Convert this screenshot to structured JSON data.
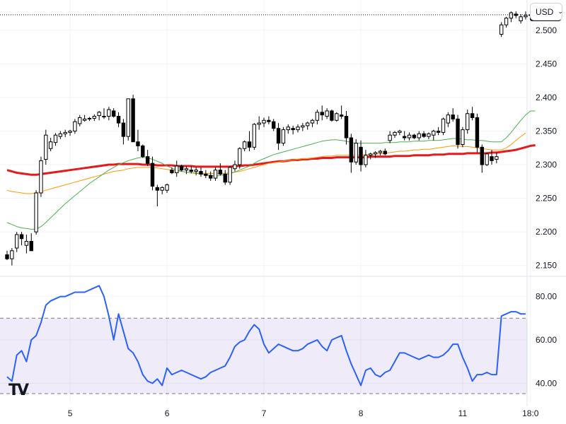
{
  "currency_selector": {
    "label": "USD",
    "chevron_icon": "chevron-down-icon"
  },
  "logo": {
    "icon": "tradingview-logo",
    "text": "TV"
  },
  "colors": {
    "up_candle_fill": "#ffffff",
    "down_candle_fill": "#000000",
    "candle_outline": "#000000",
    "ma_long": "#e41a1c",
    "ma_mid": "#ff9800",
    "ma_short": "#4caf50",
    "rsi_line": "#2962ff",
    "rsi_band": "#7e57c2",
    "price_label_bg": "#000000",
    "price_label_text": "#ffffff"
  },
  "chart_data": [
    {
      "type": "candlestick",
      "title": "",
      "price_axis": {
        "ticks": [
          "2.500",
          "2.450",
          "2.400",
          "2.350",
          "2.300",
          "2.250",
          "2.200",
          "2.150"
        ],
        "range": [
          2.135,
          2.545
        ]
      },
      "time_axis": {
        "ticks": [
          "5",
          "6",
          "7",
          "8",
          "11",
          "18:0"
        ],
        "positions_bar_index": [
          13,
          33,
          53,
          73,
          94,
          108
        ]
      },
      "last_price": {
        "label": "2.523",
        "value": 2.523
      },
      "candles_ohlc": [
        [
          2.166,
          2.172,
          2.158,
          2.16
        ],
        [
          2.16,
          2.176,
          2.15,
          2.172
        ],
        [
          2.176,
          2.2,
          2.17,
          2.196
        ],
        [
          2.196,
          2.2,
          2.18,
          2.19
        ],
        [
          2.18,
          2.196,
          2.168,
          2.186
        ],
        [
          2.186,
          2.198,
          2.172,
          2.172
        ],
        [
          2.2,
          2.262,
          2.196,
          2.258
        ],
        [
          2.258,
          2.312,
          2.252,
          2.306
        ],
        [
          2.308,
          2.352,
          2.3,
          2.344
        ],
        [
          2.324,
          2.34,
          2.32,
          2.334
        ],
        [
          2.333,
          2.347,
          2.328,
          2.344
        ],
        [
          2.342,
          2.35,
          2.338,
          2.346
        ],
        [
          2.346,
          2.352,
          2.341,
          2.348
        ],
        [
          2.348,
          2.352,
          2.343,
          2.35
        ],
        [
          2.35,
          2.368,
          2.346,
          2.364
        ],
        [
          2.361,
          2.374,
          2.357,
          2.37
        ],
        [
          2.366,
          2.374,
          2.364,
          2.368
        ],
        [
          2.368,
          2.371,
          2.365,
          2.369
        ],
        [
          2.369,
          2.375,
          2.365,
          2.372
        ],
        [
          2.373,
          2.38,
          2.366,
          2.378
        ],
        [
          2.372,
          2.384,
          2.368,
          2.372
        ],
        [
          2.372,
          2.386,
          2.366,
          2.382
        ],
        [
          2.38,
          2.384,
          2.37,
          2.372
        ],
        [
          2.372,
          2.378,
          2.356,
          2.362
        ],
        [
          2.362,
          2.368,
          2.33,
          2.342
        ],
        [
          2.342,
          2.398,
          2.336,
          2.398
        ],
        [
          2.398,
          2.404,
          2.334,
          2.334
        ],
        [
          2.334,
          2.352,
          2.32,
          2.328
        ],
        [
          2.328,
          2.33,
          2.31,
          2.312
        ],
        [
          2.312,
          2.322,
          2.298,
          2.302
        ],
        [
          2.302,
          2.312,
          2.262,
          2.268
        ],
        [
          2.266,
          2.27,
          2.238,
          2.262
        ],
        [
          2.262,
          2.268,
          2.256,
          2.266
        ],
        [
          2.262,
          2.272,
          2.258,
          2.27
        ],
        [
          2.292,
          2.296,
          2.286,
          2.288
        ],
        [
          2.288,
          2.306,
          2.282,
          2.298
        ],
        [
          2.298,
          2.3,
          2.29,
          2.292
        ],
        [
          2.292,
          2.298,
          2.286,
          2.294
        ],
        [
          2.292,
          2.298,
          2.287,
          2.29
        ],
        [
          2.29,
          2.296,
          2.284,
          2.292
        ],
        [
          2.29,
          2.296,
          2.282,
          2.286
        ],
        [
          2.286,
          2.292,
          2.28,
          2.284
        ],
        [
          2.284,
          2.29,
          2.276,
          2.28
        ],
        [
          2.28,
          2.296,
          2.276,
          2.292
        ],
        [
          2.292,
          2.302,
          2.284,
          2.286
        ],
        [
          2.286,
          2.292,
          2.27,
          2.274
        ],
        [
          2.274,
          2.298,
          2.27,
          2.296
        ],
        [
          2.294,
          2.306,
          2.29,
          2.3
        ],
        [
          2.3,
          2.326,
          2.294,
          2.324
        ],
        [
          2.324,
          2.336,
          2.32,
          2.334
        ],
        [
          2.334,
          2.35,
          2.32,
          2.326
        ],
        [
          2.326,
          2.362,
          2.322,
          2.36
        ],
        [
          2.36,
          2.372,
          2.352,
          2.362
        ],
        [
          2.362,
          2.37,
          2.356,
          2.366
        ],
        [
          2.366,
          2.372,
          2.36,
          2.364
        ],
        [
          2.364,
          2.368,
          2.35,
          2.354
        ],
        [
          2.354,
          2.362,
          2.322,
          2.332
        ],
        [
          2.332,
          2.356,
          2.328,
          2.352
        ],
        [
          2.352,
          2.36,
          2.346,
          2.356
        ],
        [
          2.354,
          2.358,
          2.345,
          2.352
        ],
        [
          2.352,
          2.36,
          2.348,
          2.356
        ],
        [
          2.356,
          2.362,
          2.35,
          2.358
        ],
        [
          2.358,
          2.364,
          2.352,
          2.362
        ],
        [
          2.362,
          2.368,
          2.356,
          2.366
        ],
        [
          2.366,
          2.382,
          2.36,
          2.378
        ],
        [
          2.378,
          2.388,
          2.366,
          2.374
        ],
        [
          2.372,
          2.384,
          2.368,
          2.38
        ],
        [
          2.38,
          2.382,
          2.364,
          2.366
        ],
        [
          2.366,
          2.378,
          2.364,
          2.376
        ],
        [
          2.374,
          2.388,
          2.368,
          2.372
        ],
        [
          2.372,
          2.38,
          2.33,
          2.34
        ],
        [
          2.34,
          2.346,
          2.288,
          2.304
        ],
        [
          2.304,
          2.338,
          2.3,
          2.332
        ],
        [
          2.326,
          2.336,
          2.29,
          2.3
        ],
        [
          2.3,
          2.322,
          2.296,
          2.314
        ],
        [
          2.314,
          2.318,
          2.308,
          2.316
        ],
        [
          2.316,
          2.32,
          2.31,
          2.318
        ],
        [
          2.318,
          2.322,
          2.314,
          2.32
        ],
        [
          2.32,
          2.324,
          2.314,
          2.316
        ],
        [
          2.336,
          2.35,
          2.332,
          2.344
        ],
        [
          2.344,
          2.35,
          2.34,
          2.348
        ],
        [
          2.348,
          2.352,
          2.344,
          2.35
        ],
        [
          2.342,
          2.35,
          2.336,
          2.34
        ],
        [
          2.34,
          2.348,
          2.336,
          2.344
        ],
        [
          2.344,
          2.346,
          2.338,
          2.34
        ],
        [
          2.34,
          2.35,
          2.336,
          2.346
        ],
        [
          2.346,
          2.35,
          2.34,
          2.342
        ],
        [
          2.342,
          2.348,
          2.338,
          2.346
        ],
        [
          2.344,
          2.352,
          2.336,
          2.35
        ],
        [
          2.35,
          2.356,
          2.344,
          2.348
        ],
        [
          2.348,
          2.37,
          2.344,
          2.368
        ],
        [
          2.362,
          2.378,
          2.356,
          2.374
        ],
        [
          2.374,
          2.384,
          2.364,
          2.368
        ],
        [
          2.368,
          2.374,
          2.324,
          2.33
        ],
        [
          2.33,
          2.356,
          2.326,
          2.352
        ],
        [
          2.352,
          2.382,
          2.346,
          2.376
        ],
        [
          2.376,
          2.386,
          2.366,
          2.37
        ],
        [
          2.37,
          2.376,
          2.318,
          2.326
        ],
        [
          2.326,
          2.33,
          2.288,
          2.3
        ],
        [
          2.3,
          2.318,
          2.298,
          2.316
        ],
        [
          2.312,
          2.322,
          2.3,
          2.306
        ],
        [
          2.308,
          2.318,
          2.302,
          2.312
        ],
        [
          2.494,
          2.512,
          2.49,
          2.508
        ],
        [
          2.508,
          2.52,
          2.504,
          2.518
        ],
        [
          2.518,
          2.528,
          2.512,
          2.526
        ],
        [
          2.524,
          2.528,
          2.518,
          2.522
        ],
        [
          2.514,
          2.524,
          2.51,
          2.52
        ],
        [
          2.52,
          2.528,
          2.516,
          2.522
        ],
        [
          2.522,
          2.53,
          2.518,
          2.523
        ]
      ],
      "candle_gaps_after_bar_index": [
        31,
        77,
        99
      ],
      "moving_averages": [
        {
          "color_key": "ma_long",
          "values": [
            2.292,
            2.29,
            2.288,
            2.287,
            2.286,
            2.285,
            2.285,
            2.286,
            2.287,
            2.288,
            2.289,
            2.29,
            2.291,
            2.292,
            2.293,
            2.294,
            2.295,
            2.296,
            2.297,
            2.298,
            2.299,
            2.3,
            2.3,
            2.301,
            2.301,
            2.301,
            2.301,
            2.301,
            2.3,
            2.3,
            2.3,
            2.299,
            2.299,
            2.299,
            2.299,
            2.298,
            2.298,
            2.298,
            2.298,
            2.297,
            2.297,
            2.297,
            2.297,
            2.297,
            2.297,
            2.297,
            2.297,
            2.298,
            2.298,
            2.299,
            2.299,
            2.3,
            2.301,
            2.302,
            2.303,
            2.304,
            2.305,
            2.305,
            2.306,
            2.307,
            2.307,
            2.308,
            2.308,
            2.309,
            2.309,
            2.31,
            2.31,
            2.31,
            2.311,
            2.311,
            2.311,
            2.311,
            2.311,
            2.311,
            2.311,
            2.312,
            2.312,
            2.312,
            2.312,
            2.312,
            2.313,
            2.313,
            2.313,
            2.313,
            2.314,
            2.314,
            2.314,
            2.314,
            2.315,
            2.315,
            2.315,
            2.316,
            2.316,
            2.316,
            2.316,
            2.317,
            2.317,
            2.317,
            2.317,
            2.317,
            2.318,
            2.318,
            2.319,
            2.32,
            2.321,
            2.322,
            2.324,
            2.326,
            2.328,
            2.329
          ]
        },
        {
          "color_key": "ma_mid",
          "values": [
            2.262,
            2.26,
            2.259,
            2.258,
            2.257,
            2.257,
            2.258,
            2.26,
            2.262,
            2.264,
            2.266,
            2.268,
            2.27,
            2.272,
            2.274,
            2.276,
            2.278,
            2.28,
            2.282,
            2.284,
            2.286,
            2.288,
            2.29,
            2.291,
            2.292,
            2.294,
            2.295,
            2.296,
            2.296,
            2.296,
            2.296,
            2.295,
            2.294,
            2.293,
            2.292,
            2.291,
            2.29,
            2.289,
            2.288,
            2.288,
            2.287,
            2.287,
            2.287,
            2.287,
            2.287,
            2.287,
            2.288,
            2.289,
            2.29,
            2.292,
            2.294,
            2.296,
            2.298,
            2.3,
            2.302,
            2.303,
            2.304,
            2.305,
            2.306,
            2.307,
            2.308,
            2.309,
            2.309,
            2.31,
            2.311,
            2.312,
            2.313,
            2.313,
            2.314,
            2.314,
            2.314,
            2.314,
            2.314,
            2.314,
            2.315,
            2.315,
            2.316,
            2.316,
            2.317,
            2.318,
            2.319,
            2.32,
            2.32,
            2.321,
            2.322,
            2.322,
            2.323,
            2.323,
            2.324,
            2.325,
            2.326,
            2.327,
            2.328,
            2.328,
            2.327,
            2.327,
            2.326,
            2.325,
            2.324,
            2.323,
            2.322,
            2.322,
            2.322,
            2.325,
            2.33,
            2.336,
            2.342,
            2.347
          ]
        },
        {
          "color_key": "ma_short",
          "values": [
            2.214,
            2.211,
            2.208,
            2.206,
            2.205,
            2.204,
            2.204,
            2.208,
            2.214,
            2.221,
            2.228,
            2.235,
            2.242,
            2.248,
            2.254,
            2.26,
            2.266,
            2.272,
            2.277,
            2.282,
            2.287,
            2.292,
            2.296,
            2.3,
            2.303,
            2.306,
            2.308,
            2.31,
            2.311,
            2.31,
            2.308,
            2.305,
            2.302,
            2.298,
            2.295,
            2.292,
            2.29,
            2.289,
            2.288,
            2.287,
            2.286,
            2.285,
            2.284,
            2.283,
            2.284,
            2.285,
            2.287,
            2.289,
            2.292,
            2.295,
            2.298,
            2.302,
            2.306,
            2.309,
            2.312,
            2.315,
            2.317,
            2.319,
            2.321,
            2.323,
            2.325,
            2.327,
            2.329,
            2.331,
            2.333,
            2.335,
            2.336,
            2.337,
            2.337,
            2.336,
            2.335,
            2.333,
            2.332,
            2.332,
            2.332,
            2.332,
            2.332,
            2.332,
            2.333,
            2.333,
            2.333,
            2.334,
            2.334,
            2.334,
            2.335,
            2.335,
            2.335,
            2.336,
            2.336,
            2.336,
            2.337,
            2.338,
            2.339,
            2.339,
            2.338,
            2.337,
            2.337,
            2.336,
            2.336,
            2.335,
            2.334,
            2.334,
            2.334,
            2.34,
            2.348,
            2.357,
            2.366,
            2.374,
            2.38,
            2.38
          ]
        }
      ]
    },
    {
      "type": "line",
      "title": "",
      "y_axis": {
        "ticks": [
          "80.00",
          "60.00",
          "40.00"
        ],
        "range": [
          31,
          89
        ]
      },
      "band": {
        "upper": 70,
        "lower": 30
      },
      "series": [
        {
          "values": [
            43,
            41,
            53,
            55,
            50,
            60,
            62,
            68,
            76,
            78,
            79,
            80,
            80,
            81,
            82,
            82,
            82,
            83,
            84,
            85,
            80,
            71,
            60,
            72,
            64,
            56,
            54,
            50,
            44,
            41,
            40,
            42,
            39,
            47,
            44,
            45,
            46,
            45,
            44,
            43,
            42,
            43,
            45,
            46,
            47,
            48,
            52,
            57,
            59,
            60,
            64,
            67,
            65,
            58,
            54,
            56,
            58,
            57,
            56,
            55,
            55,
            56,
            58,
            59,
            60,
            57,
            55,
            60,
            61,
            62,
            55,
            49,
            44,
            39,
            46,
            47,
            44,
            43,
            45,
            46,
            50,
            54,
            54,
            53,
            52,
            51,
            52,
            53,
            52,
            52,
            53,
            55,
            58,
            58,
            52,
            47,
            41,
            44,
            44,
            45,
            44,
            44,
            71,
            72,
            73,
            73,
            72,
            72
          ]
        }
      ]
    }
  ]
}
